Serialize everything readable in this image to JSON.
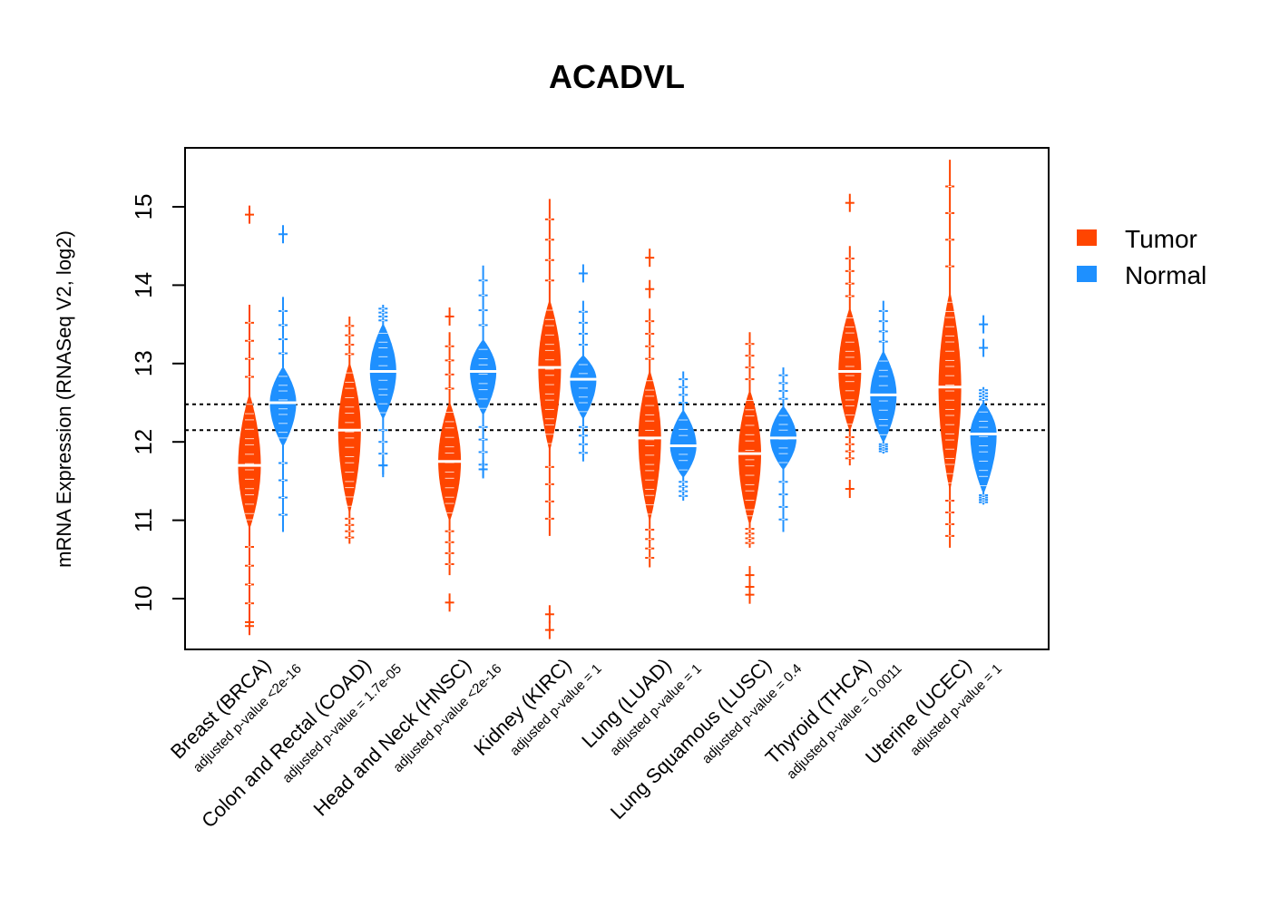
{
  "chart_data": {
    "type": "violin",
    "title": "ACADVL",
    "xlabel": "",
    "ylabel": "mRNA Expression (RNASeq V2, log2)",
    "ylim": [
      9.35,
      15.75
    ],
    "yticks": [
      10,
      11,
      12,
      13,
      14,
      15
    ],
    "grid": false,
    "reference_lines": [
      12.48,
      12.15
    ],
    "legend": {
      "position": "right",
      "entries": [
        {
          "label": "Tumor",
          "color": "#FF4500"
        },
        {
          "label": "Normal",
          "color": "#1E90FF"
        }
      ]
    },
    "categories": [
      {
        "label": "Breast (BRCA)",
        "pvalue": "adjusted p-value <2e-16"
      },
      {
        "label": "Colon and Rectal (COAD)",
        "pvalue": "adjusted p-value = 1.7e-05"
      },
      {
        "label": "Head and Neck (HNSC)",
        "pvalue": "adjusted p-value <2e-16"
      },
      {
        "label": "Kidney (KIRC)",
        "pvalue": "adjusted p-value = 1"
      },
      {
        "label": "Lung (LUAD)",
        "pvalue": "adjusted p-value = 1"
      },
      {
        "label": "Lung Squamous (LUSC)",
        "pvalue": "adjusted p-value = 0.4"
      },
      {
        "label": "Thyroid (THCA)",
        "pvalue": "adjusted p-value = 0.0011"
      },
      {
        "label": "Uterine (UCEC)",
        "pvalue": "adjusted p-value = 1"
      }
    ],
    "series": [
      {
        "name": "Tumor",
        "color": "#FF4500",
        "violins": [
          {
            "median": 11.7,
            "body": [
              10.9,
              12.6
            ],
            "whisker": [
              9.7,
              13.75
            ],
            "outliers": [
              14.9,
              9.65,
              9.7
            ]
          },
          {
            "median": 12.15,
            "body": [
              11.1,
              13.0
            ],
            "whisker": [
              10.7,
              13.6
            ],
            "outliers": []
          },
          {
            "median": 11.75,
            "body": [
              11.0,
              12.5
            ],
            "whisker": [
              10.3,
              13.4
            ],
            "outliers": [
              13.6,
              9.95
            ]
          },
          {
            "median": 12.95,
            "body": [
              11.9,
              13.8
            ],
            "whisker": [
              10.8,
              15.1
            ],
            "outliers": [
              9.8,
              9.6
            ]
          },
          {
            "median": 12.05,
            "body": [
              11.0,
              12.9
            ],
            "whisker": [
              10.4,
              13.7
            ],
            "outliers": [
              14.35,
              13.95
            ]
          },
          {
            "median": 11.85,
            "body": [
              10.95,
              12.65
            ],
            "whisker": [
              10.65,
              13.4
            ],
            "outliers": [
              10.3,
              10.15,
              10.05
            ]
          },
          {
            "median": 12.9,
            "body": [
              12.15,
              13.7
            ],
            "whisker": [
              11.7,
              14.5
            ],
            "outliers": [
              15.05,
              11.4
            ]
          },
          {
            "median": 12.7,
            "body": [
              11.4,
              13.9
            ],
            "whisker": [
              10.65,
              15.6
            ],
            "outliers": []
          }
        ]
      },
      {
        "name": "Normal",
        "color": "#1E90FF",
        "violins": [
          {
            "median": 12.5,
            "body": [
              11.95,
              12.95
            ],
            "whisker": [
              10.85,
              13.85
            ],
            "outliers": [
              14.65
            ]
          },
          {
            "median": 12.9,
            "body": [
              12.3,
              13.5
            ],
            "whisker": [
              11.55,
              13.75
            ],
            "outliers": [
              11.7
            ]
          },
          {
            "median": 12.9,
            "body": [
              12.35,
              13.3
            ],
            "whisker": [
              11.55,
              14.25
            ],
            "outliers": [
              11.65
            ]
          },
          {
            "median": 12.8,
            "body": [
              12.3,
              13.1
            ],
            "whisker": [
              11.75,
              13.8
            ],
            "outliers": [
              14.15
            ]
          },
          {
            "median": 11.95,
            "body": [
              11.55,
              12.4
            ],
            "whisker": [
              11.25,
              12.9
            ],
            "outliers": []
          },
          {
            "median": 12.05,
            "body": [
              11.65,
              12.45
            ],
            "whisker": [
              10.85,
              12.95
            ],
            "outliers": []
          },
          {
            "median": 12.6,
            "body": [
              12.0,
              13.15
            ],
            "whisker": [
              11.85,
              13.8
            ],
            "outliers": []
          },
          {
            "median": 12.1,
            "body": [
              11.35,
              12.5
            ],
            "whisker": [
              11.2,
              12.7
            ],
            "outliers": [
              13.5,
              13.2
            ]
          }
        ]
      }
    ]
  }
}
